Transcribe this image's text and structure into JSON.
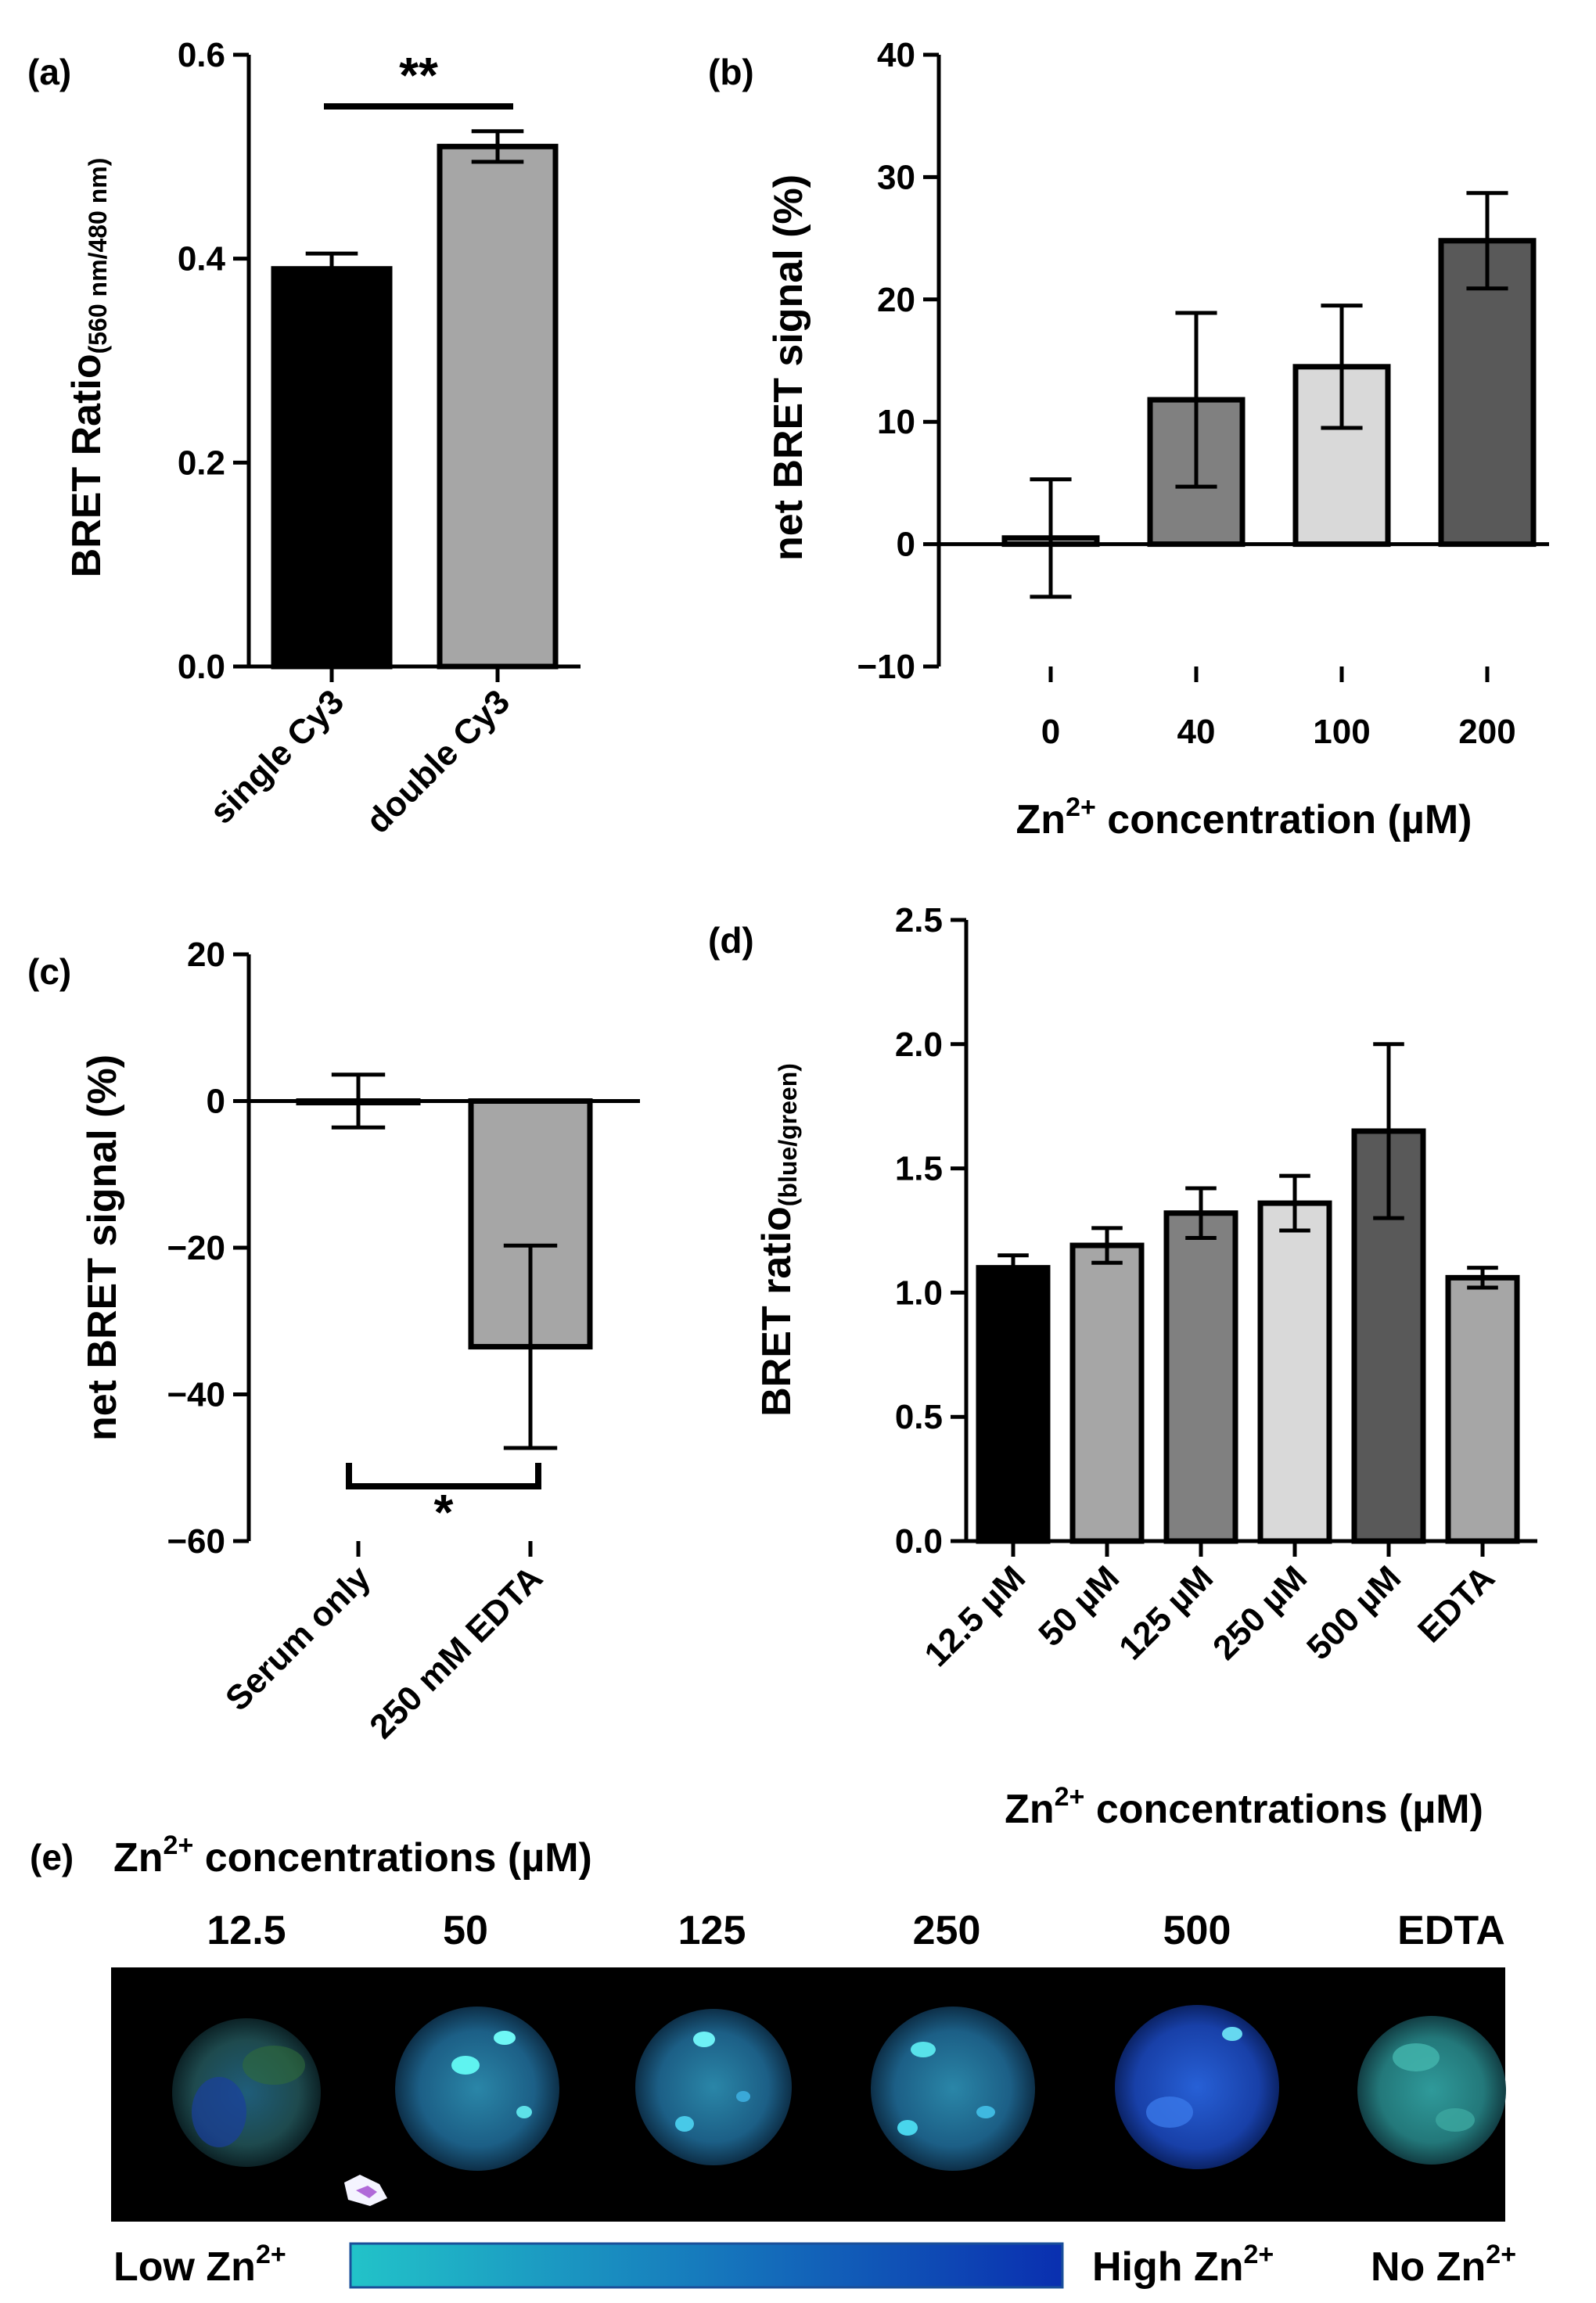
{
  "chart_data": [
    {
      "panel": "(a)",
      "type": "bar",
      "categories": [
        "single Cy3",
        "double Cy3"
      ],
      "values": [
        0.39,
        0.51
      ],
      "errors": [
        0.015,
        0.015
      ],
      "colors": [
        "#000000",
        "#a6a6a6"
      ],
      "ylabel": "BRET Ratio",
      "ylabel_sub": "(560 nm/480 nm)",
      "ylim": [
        0,
        0.6
      ],
      "yticks": [
        0.0,
        0.2,
        0.4,
        0.6
      ],
      "ytick_labels": [
        "0.0",
        "0.2",
        "0.4",
        "0.6"
      ],
      "significance": "**"
    },
    {
      "panel": "(b)",
      "type": "bar",
      "categories": [
        "0",
        "40",
        "100",
        "200"
      ],
      "values": [
        0.5,
        11.8,
        14.5,
        24.8
      ],
      "errors": [
        4.8,
        7.1,
        5.0,
        3.9
      ],
      "colors": [
        "#ffffff",
        "#808080",
        "#d9d9d9",
        "#595959"
      ],
      "ylabel": "net BRET signal (%)",
      "xlabel_parts": [
        "Zn",
        "2+",
        " concentration (µM)"
      ],
      "ylim": [
        -10,
        40
      ],
      "yticks": [
        -10,
        0,
        10,
        20,
        30,
        40
      ],
      "ytick_labels": [
        "−10",
        "0",
        "10",
        "20",
        "30",
        "40"
      ]
    },
    {
      "panel": "(c)",
      "type": "bar",
      "categories": [
        "Serum only",
        "250 mM EDTA"
      ],
      "values": [
        0,
        -33.5
      ],
      "errors": [
        3.6,
        13.8
      ],
      "colors": [
        "#ffffff",
        "#a6a6a6"
      ],
      "ylabel": "net BRET signal (%)",
      "ylim": [
        -60,
        20
      ],
      "yticks": [
        -60,
        -40,
        -20,
        0,
        20
      ],
      "ytick_labels": [
        "−60",
        "−40",
        "−20",
        "0",
        "20"
      ],
      "significance": "*"
    },
    {
      "panel": "(d)",
      "type": "bar",
      "categories": [
        "12.5 µM",
        "50 µM",
        "125 µM",
        "250 µM",
        "500 µM",
        "EDTA"
      ],
      "values": [
        1.1,
        1.19,
        1.32,
        1.36,
        1.65,
        1.06
      ],
      "errors": [
        0.05,
        0.07,
        0.1,
        0.11,
        0.35,
        0.04
      ],
      "colors": [
        "#000000",
        "#a6a6a6",
        "#808080",
        "#d9d9d9",
        "#595959",
        "#a6a6a6"
      ],
      "ylabel": "BRET ratio",
      "ylabel_sub": "(blue/green)",
      "xlabel_parts": [
        "Zn",
        "2+",
        " concentrations (µM)"
      ],
      "ylim": [
        0,
        2.5
      ],
      "yticks": [
        0.0,
        0.5,
        1.0,
        1.5,
        2.0,
        2.5
      ],
      "ytick_labels": [
        "0.0",
        "0.5",
        "1.0",
        "1.5",
        "2.0",
        "2.5"
      ]
    }
  ],
  "panel_e": {
    "label": "(e)",
    "heading_parts": [
      "Zn",
      "2+",
      " concentrations (µM)"
    ],
    "columns": [
      "12.5",
      "50",
      "125",
      "250",
      "500",
      "EDTA"
    ],
    "legend_low": [
      "Low Zn",
      "2+"
    ],
    "legend_high": [
      "High Zn",
      "2+"
    ],
    "legend_none": [
      "No Zn",
      "2+"
    ],
    "gradient_colors": [
      "#22c3c9",
      "#0a2fb0"
    ]
  }
}
